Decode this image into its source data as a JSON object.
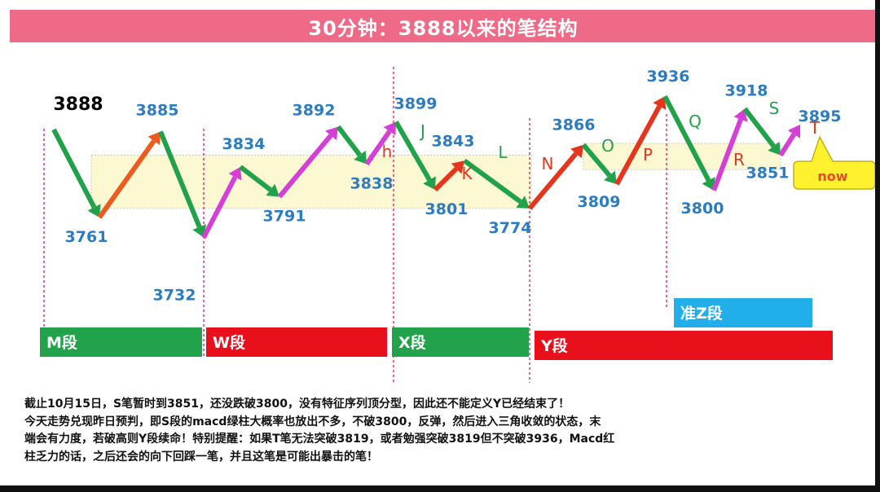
{
  "title": "30分钟：3888以来的笔结构",
  "colors": {
    "up_red": "#e5351d",
    "up_orange": "#ef5a1e",
    "up_magenta": "#d63fd6",
    "down_green": "#21a14a",
    "label_blue": "#2b7cc1",
    "zone_fill": "#fbf8d2",
    "segment_green": "#22a24a",
    "segment_red": "#e8101a",
    "segment_blue": "#21aee9",
    "title_bg": "#ef6a86",
    "callout_fill": "#fff12e"
  },
  "chart_data": {
    "type": "line",
    "title": "30分钟：3888以来的笔结构",
    "series": [
      {
        "values": [
          3888,
          3761,
          3885,
          3732,
          3834,
          3791,
          3892,
          3838,
          3899,
          3801,
          3843,
          3774,
          3866,
          3809,
          3936,
          3800,
          3918,
          3851,
          3895
        ]
      }
    ],
    "price_labels": [
      {
        "text": "3888",
        "value": 3888
      },
      {
        "text": "3761",
        "value": 3761
      },
      {
        "text": "3885",
        "value": 3885
      },
      {
        "text": "3732",
        "value": 3732
      },
      {
        "text": "3834",
        "value": 3834
      },
      {
        "text": "3791",
        "value": 3791
      },
      {
        "text": "3892",
        "value": 3892
      },
      {
        "text": "3838",
        "value": 3838
      },
      {
        "text": "3899",
        "value": 3899
      },
      {
        "text": "3801",
        "value": 3801
      },
      {
        "text": "3843",
        "value": 3843
      },
      {
        "text": "3774",
        "value": 3774
      },
      {
        "text": "3866",
        "value": 3866
      },
      {
        "text": "3809",
        "value": 3809
      },
      {
        "text": "3936",
        "value": 3936
      },
      {
        "text": "3800",
        "value": 3800
      },
      {
        "text": "3918",
        "value": 3918
      },
      {
        "text": "3851",
        "value": 3851
      },
      {
        "text": "3895",
        "value": 3895
      }
    ],
    "stroke_letters": [
      "h",
      "J",
      "K",
      "L",
      "N",
      "O",
      "P",
      "Q",
      "R",
      "S",
      "T"
    ],
    "callout": "now",
    "segments": [
      {
        "label": "M段",
        "color": "#22a24a"
      },
      {
        "label": "W段",
        "color": "#e8101a"
      },
      {
        "label": "X段",
        "color": "#22a24a"
      },
      {
        "label": "Y段",
        "color": "#e8101a"
      },
      {
        "label": "准Z段",
        "color": "#21aee9"
      }
    ]
  },
  "notes": [
    "截止10月15日，S笔暂时到3851，还没跌破3800，没有特征序列顶分型，因此还不能定义Y已经结束了！",
    "今天走势兑现昨日预判，即S段的macd绿柱大概率也放出不多，不破3800，反弹，然后进入三角收敛的状态，末",
    "端会有力度，若破高则Y段续命！特别提醒：如果T笔无法突破3819，或者勉强突破3819但不突破3936，Macd红",
    "柱乏力的话，之后还会的向下回踩一笔，并且这笔是可能出暴击的笔！"
  ]
}
